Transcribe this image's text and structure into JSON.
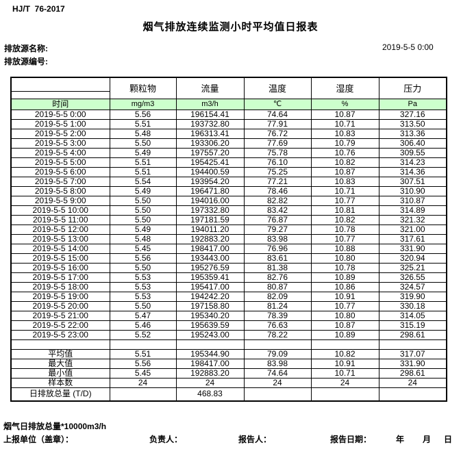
{
  "doc": {
    "standard": "HJ/T  76-2017",
    "title": "烟气排放连续监测小时平均值日报表",
    "source_name_label": "排放源名称:",
    "source_id_label": "排放源编号:",
    "datetime": "2019-5-5 0:00"
  },
  "table": {
    "time_header": "时间",
    "pollutant_headers": [
      "颗粒物",
      "流量",
      "温度",
      "湿度",
      "压力"
    ],
    "units": [
      "mg/m3",
      "m3/h",
      "℃",
      "%",
      "Pa"
    ],
    "rows": [
      [
        "2019-5-5 0:00",
        "5.56",
        "196154.41",
        "74.64",
        "10.87",
        "327.16"
      ],
      [
        "2019-5-5 1:00",
        "5.51",
        "193732.80",
        "77.91",
        "10.71",
        "313.50"
      ],
      [
        "2019-5-5 2:00",
        "5.48",
        "196313.41",
        "76.72",
        "10.83",
        "313.36"
      ],
      [
        "2019-5-5 3:00",
        "5.50",
        "193306.20",
        "77.69",
        "10.79",
        "306.40"
      ],
      [
        "2019-5-5 4:00",
        "5.49",
        "197557.20",
        "75.78",
        "10.76",
        "309.55"
      ],
      [
        "2019-5-5 5:00",
        "5.51",
        "195425.41",
        "76.10",
        "10.82",
        "314.23"
      ],
      [
        "2019-5-5 6:00",
        "5.51",
        "194400.59",
        "75.25",
        "10.87",
        "314.36"
      ],
      [
        "2019-5-5 7:00",
        "5.54",
        "193954.20",
        "77.21",
        "10.83",
        "307.51"
      ],
      [
        "2019-5-5 8:00",
        "5.49",
        "196471.80",
        "78.46",
        "10.71",
        "310.90"
      ],
      [
        "2019-5-5 9:00",
        "5.50",
        "194016.00",
        "82.82",
        "10.77",
        "310.87"
      ],
      [
        "2019-5-5 10:00",
        "5.50",
        "197332.80",
        "83.42",
        "10.81",
        "314.89"
      ],
      [
        "2019-5-5 11:00",
        "5.50",
        "197181.59",
        "76.87",
        "10.82",
        "321.32"
      ],
      [
        "2019-5-5 12:00",
        "5.49",
        "194011.20",
        "79.27",
        "10.78",
        "321.00"
      ],
      [
        "2019-5-5 13:00",
        "5.48",
        "192883.20",
        "83.98",
        "10.77",
        "317.61"
      ],
      [
        "2019-5-5 14:00",
        "5.45",
        "198417.00",
        "76.96",
        "10.88",
        "331.90"
      ],
      [
        "2019-5-5 15:00",
        "5.56",
        "193443.00",
        "83.61",
        "10.80",
        "320.94"
      ],
      [
        "2019-5-5 16:00",
        "5.50",
        "195276.59",
        "81.38",
        "10.78",
        "325.21"
      ],
      [
        "2019-5-5 17:00",
        "5.53",
        "195359.41",
        "82.76",
        "10.89",
        "326.55"
      ],
      [
        "2019-5-5 18:00",
        "5.53",
        "195417.00",
        "80.87",
        "10.86",
        "324.57"
      ],
      [
        "2019-5-5 19:00",
        "5.53",
        "194242.20",
        "82.09",
        "10.91",
        "319.90"
      ],
      [
        "2019-5-5 20:00",
        "5.50",
        "197158.80",
        "81.24",
        "10.77",
        "330.18"
      ],
      [
        "2019-5-5 21:00",
        "5.47",
        "195340.20",
        "78.39",
        "10.80",
        "314.05"
      ],
      [
        "2019-5-5 22:00",
        "5.46",
        "195639.59",
        "76.63",
        "10.87",
        "315.19"
      ],
      [
        "2019-5-5 23:00",
        "5.52",
        "195243.00",
        "78.22",
        "10.89",
        "298.61"
      ]
    ],
    "summary": [
      [
        "平均值",
        "5.51",
        "195344.90",
        "79.09",
        "10.82",
        "317.07"
      ],
      [
        "最大值",
        "5.56",
        "198417.00",
        "83.98",
        "10.91",
        "331.90"
      ],
      [
        "最小值",
        "5.45",
        "192883.20",
        "74.64",
        "10.71",
        "298.61"
      ],
      [
        "样本数",
        "24",
        "24",
        "24",
        "24",
        "24"
      ],
      [
        "日排放总量 (T/D)",
        "",
        "468.83",
        "",
        "",
        ""
      ]
    ]
  },
  "footer": {
    "note": "烟气日排放总量*10000m3/h",
    "unit_label": "上报单位（盖章）：",
    "responsible_label": "负责人：",
    "reporter_label": "报告人：",
    "report_date_label": "报告日期：",
    "year": "年",
    "month": "月",
    "day": "日"
  },
  "colors": {
    "header_green": "#ccffcc",
    "border": "#000000"
  }
}
